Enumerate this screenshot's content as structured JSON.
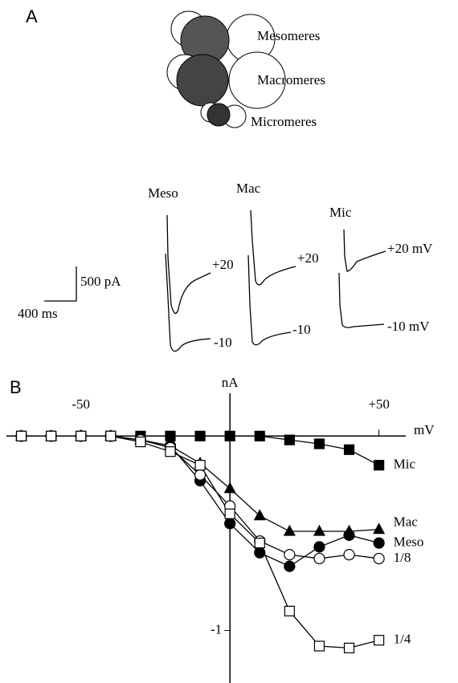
{
  "figure": {
    "panel_a_label": "A",
    "panel_b_label": "B",
    "embryo_labels": [
      "Mesomeres",
      "Macromeres",
      "Micromeres"
    ],
    "trace_labels": [
      "Meso",
      "Mac",
      "Mic"
    ],
    "voltage_labels": [
      "+20",
      "-10",
      "+20",
      "-10",
      "+20 mV",
      "-10 mV"
    ],
    "scale_current": "500 pA",
    "scale_time": "400 ms"
  },
  "chart_data": {
    "type": "line",
    "x_label": "mV",
    "y_label": "nA",
    "x": [
      -70,
      -60,
      -50,
      -40,
      -30,
      -20,
      -10,
      0,
      10,
      20,
      30,
      40,
      50
    ],
    "series": [
      {
        "name": "Mic",
        "color": "#000000",
        "marker": "square",
        "filled": true,
        "values": [
          0,
          0,
          0,
          0,
          0,
          0,
          0,
          0,
          0,
          -0.02,
          -0.04,
          -0.07,
          -0.15
        ]
      },
      {
        "name": "Mac",
        "color": "#000000",
        "marker": "triangle",
        "filled": true,
        "values": [
          0,
          0,
          0,
          0,
          -0.02,
          -0.05,
          -0.14,
          -0.27,
          -0.41,
          -0.49,
          -0.49,
          -0.49,
          -0.48
        ]
      },
      {
        "name": "Meso",
        "color": "#000000",
        "marker": "circle",
        "filled": true,
        "values": [
          0,
          0,
          0,
          0,
          -0.02,
          -0.05,
          -0.23,
          -0.45,
          -0.6,
          -0.67,
          -0.57,
          -0.51,
          -0.55
        ]
      },
      {
        "name": "1/8",
        "color": "#000000",
        "marker": "circle",
        "filled": false,
        "values": [
          0,
          0,
          0,
          0,
          -0.02,
          -0.06,
          -0.2,
          -0.36,
          -0.54,
          -0.61,
          -0.63,
          -0.61,
          -0.63
        ]
      },
      {
        "name": "1/4",
        "color": "#000000",
        "marker": "square",
        "filled": false,
        "values": [
          0,
          0,
          0,
          0,
          -0.03,
          -0.08,
          -0.15,
          -0.4,
          -0.55,
          -0.9,
          -1.08,
          -1.09,
          -1.05
        ]
      }
    ],
    "xlim": [
      -75,
      59
    ],
    "ylim": [
      -1.27,
      0.22
    ],
    "xticks": [
      -50,
      {
        "value": 50,
        "label": "+50"
      }
    ],
    "yticks": [
      -1
    ]
  }
}
